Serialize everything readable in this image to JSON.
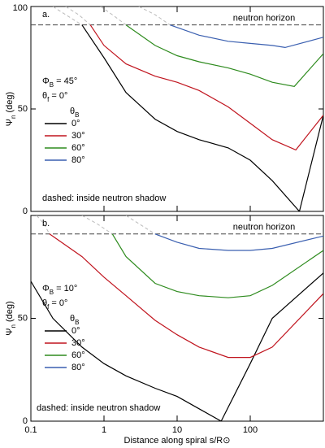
{
  "chart_data": [
    {
      "type": "line",
      "panel_label": "a.",
      "horizon": 91,
      "horizon_label": "neutron horizon",
      "xlim": [
        0.1,
        1000
      ],
      "xticks": [
        0.1,
        1,
        10,
        100
      ],
      "log_x": true,
      "ylim": [
        0,
        100
      ],
      "yticks": [
        0,
        50,
        100
      ],
      "ylabel": {
        "symbol": "Ψ",
        "sub": "n",
        "rest": " (deg)"
      },
      "params": [
        {
          "symbol": "Φ",
          "sub": "B",
          "rest": " = 45°"
        },
        {
          "symbol": "θ",
          "sub": "f",
          "rest": " = 0°"
        }
      ],
      "legend_title": {
        "symbol": "θ",
        "sub": "B"
      },
      "note": "dashed: inside neutron shadow",
      "series": [
        {
          "name": "0°",
          "color": "#000000",
          "x": [
            0.5,
            1,
            2,
            5,
            10,
            20,
            50,
            100,
            200,
            470,
            1000
          ],
          "values": [
            91,
            75,
            58,
            45,
            39,
            35,
            31,
            25,
            15,
            0,
            47
          ],
          "shadow_x": [
            0.2,
            0.3,
            0.5
          ],
          "shadow_values": [
            100,
            96,
            91
          ]
        },
        {
          "name": "30°",
          "color": "#c0141e",
          "x": [
            0.65,
            1,
            2,
            5,
            10,
            20,
            50,
            100,
            200,
            420,
            1000
          ],
          "values": [
            91,
            81,
            72,
            66,
            63,
            59,
            51,
            43,
            35,
            30,
            47
          ],
          "shadow_x": [
            0.3,
            0.45,
            0.65
          ],
          "shadow_values": [
            100,
            96,
            91
          ]
        },
        {
          "name": "60°",
          "color": "#2e8b1e",
          "x": [
            2,
            5,
            10,
            20,
            50,
            100,
            200,
            400,
            1000
          ],
          "values": [
            91,
            81,
            76,
            73,
            70,
            67,
            63,
            61,
            77
          ],
          "shadow_x": [
            0.9,
            1.3,
            2
          ],
          "shadow_values": [
            100,
            96,
            91
          ]
        },
        {
          "name": "80°",
          "color": "#3a5fb0",
          "x": [
            8,
            20,
            50,
            100,
            200,
            300,
            1000
          ],
          "values": [
            91,
            86,
            83,
            82,
            81,
            80,
            85
          ],
          "shadow_x": [
            3,
            5,
            8
          ],
          "shadow_values": [
            100,
            96,
            91
          ]
        }
      ]
    },
    {
      "type": "line",
      "panel_label": "b.",
      "horizon": 91,
      "horizon_label": "neutron horizon",
      "xlim": [
        0.1,
        1000
      ],
      "xticks": [
        0.1,
        1,
        10,
        100
      ],
      "log_x": true,
      "ylim": [
        0,
        100
      ],
      "yticks": [
        0,
        50
      ],
      "ylabel": {
        "symbol": "Ψ",
        "sub": "n",
        "rest": " (deg)"
      },
      "xlabel": "Distance along spiral s/R⊙",
      "params": [
        {
          "symbol": "Φ",
          "sub": "B",
          "rest": " = 10°"
        },
        {
          "symbol": "θ",
          "sub": "f",
          "rest": " = 0°"
        }
      ],
      "legend_title": {
        "symbol": "θ",
        "sub": "B"
      },
      "note": "dashed: inside neutron shadow",
      "series": [
        {
          "name": "0°",
          "color": "#000000",
          "x": [
            0.1,
            0.2,
            0.5,
            1,
            2,
            5,
            10,
            20,
            40,
            100,
            200,
            1000
          ],
          "values": [
            68,
            50,
            36,
            28,
            22,
            16,
            12,
            6,
            0,
            28,
            50,
            72
          ]
        },
        {
          "name": "30°",
          "color": "#c0141e",
          "x": [
            0.18,
            0.5,
            1,
            2,
            5,
            10,
            20,
            50,
            100,
            200,
            1000
          ],
          "values": [
            91,
            80,
            70,
            61,
            49,
            42,
            36,
            31,
            31,
            36,
            62
          ],
          "shadow_x": [
            0.12,
            0.15,
            0.18
          ],
          "shadow_values": [
            100,
            96,
            91
          ]
        },
        {
          "name": "60°",
          "color": "#2e8b1e",
          "x": [
            1.3,
            2,
            5,
            10,
            20,
            50,
            100,
            200,
            1000
          ],
          "values": [
            91,
            80,
            67,
            63,
            61,
            60,
            61,
            66,
            83
          ],
          "shadow_x": [
            0.5,
            0.8,
            1.3
          ],
          "shadow_values": [
            100,
            96,
            91
          ]
        },
        {
          "name": "80°",
          "color": "#3a5fb0",
          "x": [
            5,
            10,
            20,
            50,
            100,
            200,
            1000
          ],
          "values": [
            91,
            87,
            84,
            83,
            83,
            84,
            90
          ],
          "shadow_x": [
            2,
            3,
            5
          ],
          "shadow_values": [
            100,
            96,
            91
          ]
        }
      ]
    }
  ]
}
